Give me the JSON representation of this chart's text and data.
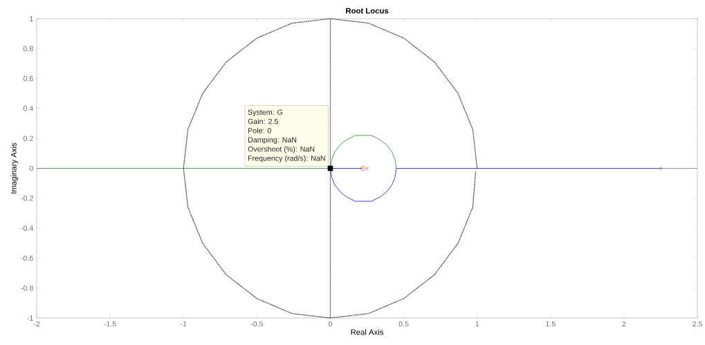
{
  "chart_data": {
    "type": "line",
    "title": "Root Locus",
    "xlabel": "Real Axis",
    "ylabel": "Imaginary Axis",
    "xlim": [
      -2,
      2.5
    ],
    "ylim": [
      -1,
      1
    ],
    "xticks": [
      -2,
      -1.5,
      -1,
      -0.5,
      0,
      0.5,
      1,
      1.5,
      2,
      2.5
    ],
    "yticks": [
      -1,
      -0.8,
      -0.6,
      -0.4,
      -0.2,
      0,
      0.2,
      0.4,
      0.6,
      0.8,
      1
    ],
    "ref_lines": [
      {
        "axis": "x",
        "value": 0,
        "color": "#606060",
        "line_style": "dotted"
      }
    ],
    "series": [
      {
        "color": "#3c9a3c",
        "marker": "none",
        "line_style": "solid",
        "x": [
          -2,
          0,
          0.01,
          0.03,
          0.07,
          0.11,
          0.17,
          0.23,
          0.28,
          0.34,
          0.38,
          0.42,
          0.44,
          0.45
        ],
        "values": [
          0,
          0,
          0.06,
          0.11,
          0.16,
          0.19,
          0.22,
          0.22,
          0.22,
          0.19,
          0.16,
          0.11,
          0.06,
          0
        ]
      },
      {
        "color": "#3232c8",
        "marker": "none",
        "line_style": "solid",
        "x": [
          2.25,
          0.45,
          0.44,
          0.42,
          0.38,
          0.34,
          0.28,
          0.23,
          0.17,
          0.11,
          0.07,
          0.03,
          0.01,
          0,
          0.22
        ],
        "values": [
          0,
          0,
          -0.06,
          -0.11,
          -0.16,
          -0.19,
          -0.22,
          -0.22,
          -0.22,
          -0.19,
          -0.16,
          -0.11,
          -0.06,
          0,
          0
        ]
      },
      {
        "color": "#707090",
        "marker": "none",
        "line_style": "dotted",
        "x": [
          2.25,
          2.5
        ],
        "values": [
          0,
          0
        ]
      },
      {
        "color": "#404040",
        "marker": "none",
        "line_style": "dotted",
        "x": [
          1,
          0.97,
          0.87,
          0.71,
          0.5,
          0.26,
          0,
          -0.26,
          -0.5,
          -0.71,
          -0.87,
          -0.97,
          -1,
          -0.97,
          -0.87,
          -0.71,
          -0.5,
          -0.26,
          0,
          0.26,
          0.5,
          0.71,
          0.87,
          0.97,
          0.99
        ],
        "values": [
          0,
          0.26,
          0.5,
          0.71,
          0.87,
          0.97,
          1,
          0.97,
          0.87,
          0.71,
          0.5,
          0.26,
          0,
          -0.26,
          -0.5,
          -0.71,
          -0.87,
          -0.97,
          -1,
          -0.97,
          -0.87,
          -0.71,
          -0.5,
          -0.26,
          -0.02
        ]
      },
      {
        "type": "scatter",
        "color": "#d9541a",
        "marker": "cross",
        "x": [
          0.25,
          2.25
        ],
        "values": [
          0,
          0
        ]
      },
      {
        "type": "scatter",
        "color": "#d9541a",
        "marker": "circle",
        "x": [
          0.22
        ],
        "values": [
          0
        ]
      },
      {
        "type": "scatter",
        "color": "#000000",
        "marker": "square",
        "x": [
          0
        ],
        "values": [
          0
        ]
      }
    ],
    "annotations": [
      "System: G",
      "Gain: 2.5",
      "Pole: 0",
      "Damping: NaN",
      "Overshoot (%): NaN",
      "Frequency (rad/s): NaN"
    ]
  }
}
